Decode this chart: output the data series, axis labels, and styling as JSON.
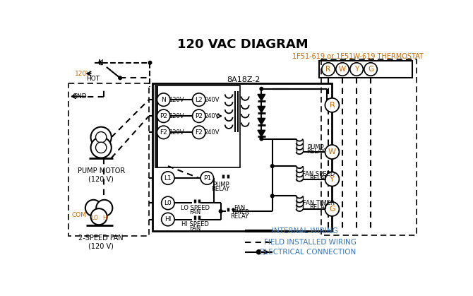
{
  "title": "120 VAC DIAGRAM",
  "bg_color": "#ffffff",
  "tc": "#000000",
  "oc": "#cc6600",
  "lc": "#3377bb",
  "thermostat_label": "1F51-619 or 1F51W-619 THERMOSTAT",
  "control_box_label": "8A18Z-2",
  "pump_motor_label": "PUMP MOTOR\n(120 V)",
  "fan_label": "2-SPEED FAN\n(120 V)",
  "legend_internal": "INTERNAL WIRING",
  "legend_field": "FIELD INSTALLED WIRING",
  "legend_elec": "ELECTRICAL CONNECTION"
}
